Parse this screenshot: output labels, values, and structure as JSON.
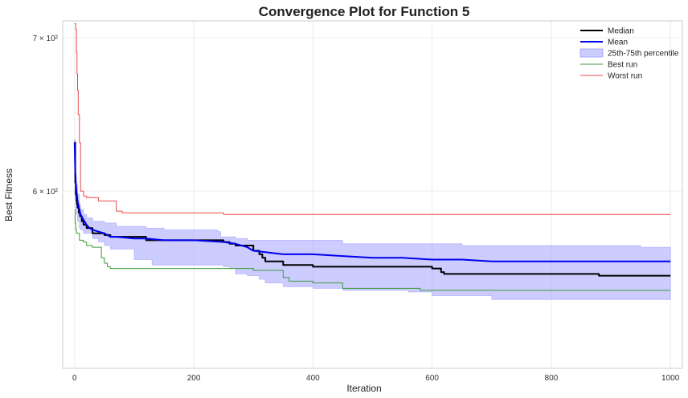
{
  "chart_data": {
    "type": "line",
    "title": "Convergence Plot for Function 5",
    "xlabel": "Iteration",
    "ylabel": "Best Fitness",
    "xlim": [
      -20,
      1020
    ],
    "ylim": [
      502,
      712
    ],
    "yscale": "log",
    "grid": true,
    "legend_position": "top-right",
    "x_ticks": [
      0,
      200,
      400,
      600,
      800,
      1000
    ],
    "y_ticks": [
      {
        "value": 600,
        "label": "6 × 10²"
      },
      {
        "value": 700,
        "label": "7 × 10²"
      }
    ],
    "legend": [
      {
        "label": "Median",
        "kind": "line",
        "color": "#000000",
        "width": 2
      },
      {
        "label": "Mean",
        "kind": "line",
        "color": "#0000ee",
        "width": 2
      },
      {
        "label": "25th-75th percentile",
        "kind": "band",
        "color": "#9999ff"
      },
      {
        "label": "Best run",
        "kind": "line",
        "color": "#3a9a3a",
        "width": 1
      },
      {
        "label": "Worst run",
        "kind": "line",
        "color": "#e84a4a",
        "width": 1
      }
    ],
    "band": {
      "name": "25th-75th percentile",
      "color": "#9999ff",
      "x": [
        0,
        1,
        2,
        3,
        5,
        8,
        10,
        15,
        20,
        30,
        40,
        50,
        60,
        70,
        80,
        100,
        120,
        130,
        150,
        200,
        240,
        245,
        250,
        260,
        270,
        290,
        310,
        320,
        350,
        400,
        450,
        500,
        550,
        560,
        600,
        650,
        700,
        800,
        900,
        950,
        1000
      ],
      "lower": [
        618,
        596,
        590,
        586,
        582,
        578,
        577,
        575,
        575,
        572,
        570,
        568,
        566,
        566,
        566,
        560,
        560,
        557,
        557,
        557,
        557,
        557,
        556,
        555,
        552,
        551,
        549,
        547,
        545,
        544,
        543,
        543,
        543,
        542,
        540,
        540,
        538,
        538,
        538,
        538,
        538
      ],
      "upper": [
        632,
        618,
        610,
        604,
        598,
        592,
        589,
        586,
        584,
        582,
        582,
        581,
        581,
        579,
        579,
        579,
        578,
        578,
        577,
        577,
        576,
        573,
        573,
        573,
        572,
        571,
        571,
        571,
        571,
        571,
        569,
        569,
        569,
        569,
        569,
        568,
        568,
        568,
        568,
        567,
        567
      ]
    },
    "series": [
      {
        "name": "Median",
        "color": "#000000",
        "width": 2,
        "step": true,
        "x": [
          0,
          1,
          2,
          3,
          4,
          5,
          7,
          9,
          12,
          15,
          20,
          30,
          40,
          50,
          60,
          90,
          120,
          180,
          240,
          250,
          260,
          270,
          290,
          300,
          310,
          315,
          320,
          350,
          400,
          500,
          580,
          600,
          615,
          620,
          700,
          880,
          1000
        ],
        "y": [
          630,
          605,
          598,
          594,
          592,
          590,
          587,
          585,
          582,
          580,
          578,
          575,
          575,
          574,
          573,
          573,
          571,
          571,
          571,
          570,
          569,
          568,
          568,
          565,
          563,
          561,
          559,
          557,
          556,
          556,
          556,
          555,
          553,
          552,
          552,
          551,
          551
        ]
      },
      {
        "name": "Mean",
        "color": "#0000ee",
        "width": 2,
        "step": false,
        "x": [
          0,
          1,
          2,
          3,
          5,
          8,
          10,
          15,
          20,
          25,
          30,
          40,
          50,
          60,
          70,
          100,
          120,
          150,
          200,
          250,
          270,
          290,
          300,
          350,
          400,
          450,
          500,
          550,
          600,
          650,
          700,
          800,
          900,
          1000
        ],
        "y": [
          630,
          612,
          605,
          600,
          594,
          589,
          586,
          583,
          580,
          578,
          577,
          576,
          575,
          573,
          573,
          572,
          572,
          571,
          571,
          570,
          569,
          567,
          565,
          563,
          563,
          562,
          561,
          561,
          560,
          560,
          559,
          559,
          559,
          559
        ]
      },
      {
        "name": "Best run",
        "color": "#3a9a3a",
        "width": 1,
        "step": true,
        "x": [
          0,
          1,
          2,
          3,
          5,
          8,
          12,
          15,
          20,
          25,
          30,
          45,
          50,
          55,
          60,
          100,
          150,
          200,
          250,
          300,
          350,
          360,
          400,
          450,
          500,
          580,
          600,
          700,
          1000
        ],
        "y": [
          589,
          581,
          577,
          575,
          575,
          571,
          571,
          570,
          568,
          568,
          567,
          561,
          558,
          556,
          555,
          555,
          555,
          555,
          555,
          554,
          550,
          548,
          547,
          544,
          544,
          543,
          543,
          543,
          543
        ]
      },
      {
        "name": "Worst run",
        "color": "#e84a4a",
        "width": 1,
        "step": true,
        "x": [
          0,
          2,
          3,
          4,
          5,
          6,
          8,
          10,
          15,
          20,
          30,
          40,
          60,
          70,
          80,
          200,
          240,
          250,
          300,
          1000
        ],
        "y": [
          710,
          706,
          690,
          675,
          664,
          648,
          630,
          600,
          597,
          596,
          596,
          594,
          594,
          588,
          587,
          587,
          587,
          586,
          586,
          586
        ]
      }
    ]
  }
}
